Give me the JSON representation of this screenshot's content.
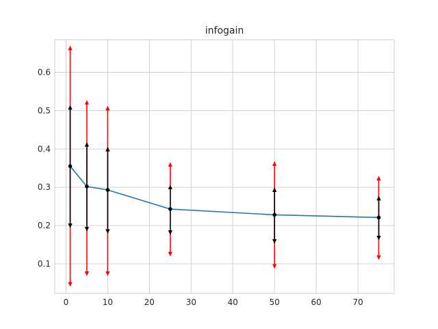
{
  "chart_data": {
    "type": "line",
    "title": "infogain",
    "xlabel": "",
    "ylabel": "",
    "xlim": [
      -2.7,
      78.7
    ],
    "ylim": [
      0.023,
      0.685
    ],
    "xticks": [
      0,
      10,
      20,
      30,
      40,
      50,
      60,
      70
    ],
    "yticks": [
      0.1,
      0.2,
      0.3,
      0.4,
      0.5,
      0.6
    ],
    "grid": true,
    "line_color": "#1f77b4",
    "marker_color": "#000000",
    "outer_range_color": "#ff0000",
    "inner_range_color": "#000000",
    "series": [
      {
        "x": [
          1,
          5,
          10,
          25,
          50,
          75
        ],
        "y": [
          0.355,
          0.302,
          0.293,
          0.243,
          0.228,
          0.221
        ],
        "inner_high": [
          0.513,
          0.416,
          0.404,
          0.305,
          0.298,
          0.276
        ],
        "inner_low": [
          0.195,
          0.186,
          0.18,
          0.177,
          0.154,
          0.163
        ],
        "outer_high": [
          0.668,
          0.526,
          0.511,
          0.364,
          0.366,
          0.328
        ],
        "outer_low": [
          0.042,
          0.07,
          0.07,
          0.121,
          0.089,
          0.112
        ]
      }
    ]
  }
}
